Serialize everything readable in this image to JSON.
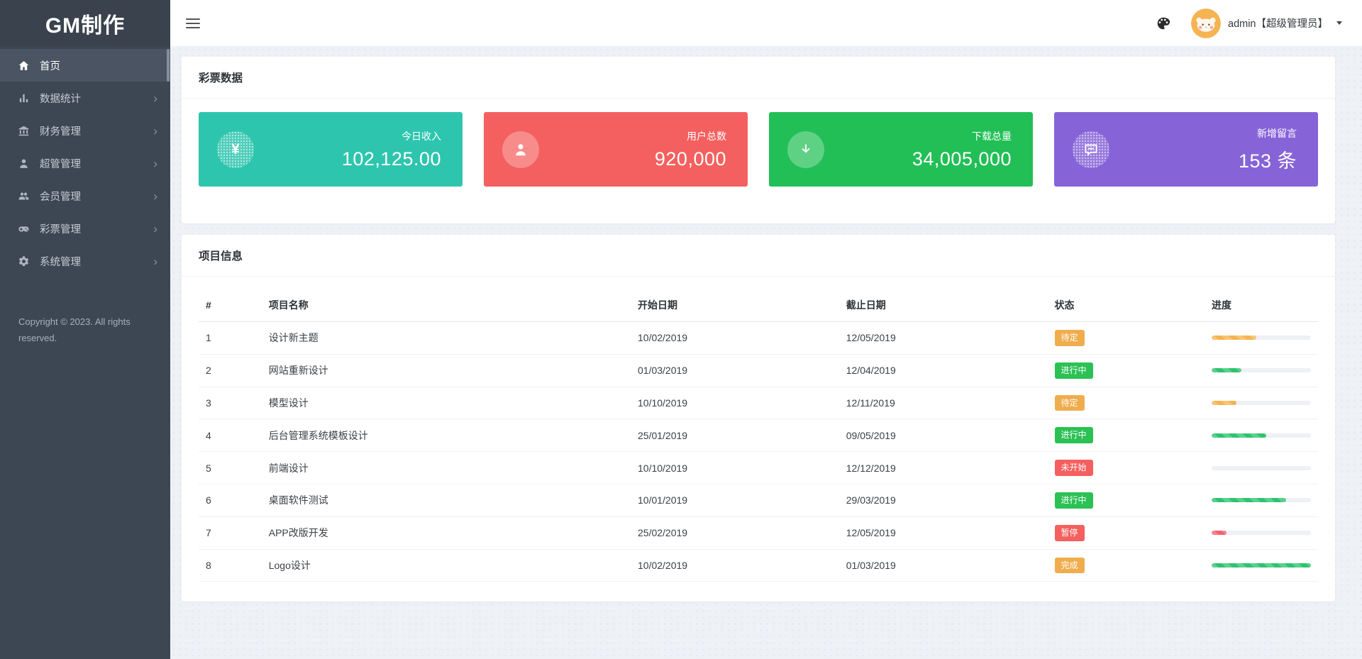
{
  "app": {
    "logo_text": "GM制作"
  },
  "topbar": {
    "hamburger_icon": "menu-icon",
    "theme_icon": "palette-icon",
    "avatar_icon": "cat-avatar",
    "user_label": "admin【超级管理员】",
    "dropdown_icon": "caret-down-icon"
  },
  "sidebar": {
    "items": [
      {
        "label": "首页",
        "icon": "home-icon",
        "active": true,
        "has_children": false
      },
      {
        "label": "数据统计",
        "icon": "chart-icon",
        "active": false,
        "has_children": true
      },
      {
        "label": "财务管理",
        "icon": "bank-icon",
        "active": false,
        "has_children": true
      },
      {
        "label": "超管管理",
        "icon": "user-icon",
        "active": false,
        "has_children": true
      },
      {
        "label": "会员管理",
        "icon": "users-icon",
        "active": false,
        "has_children": true
      },
      {
        "label": "彩票管理",
        "icon": "gamepad-icon",
        "active": false,
        "has_children": true
      },
      {
        "label": "系统管理",
        "icon": "gear-icon",
        "active": false,
        "has_children": true
      }
    ],
    "copyright": "Copyright © 2023. All rights reserved."
  },
  "stats_panel": {
    "title": "彩票数据",
    "cards": [
      {
        "label": "今日收入",
        "value": "102,125.00",
        "color": "#2ec5ae",
        "icon": "yen-icon",
        "icon_style": "dotted"
      },
      {
        "label": "用户总数",
        "value": "920,000",
        "color": "#f4605f",
        "icon": "user-icon",
        "icon_style": "solid"
      },
      {
        "label": "下载总量",
        "value": "34,005,000",
        "color": "#22bf56",
        "icon": "download-icon",
        "icon_style": "solid"
      },
      {
        "label": "新增留言",
        "value": "153 条",
        "color": "#8763d8",
        "icon": "comment-icon",
        "icon_style": "dotted"
      }
    ]
  },
  "projects_panel": {
    "title": "项目信息",
    "columns": [
      "#",
      "项目名称",
      "开始日期",
      "截止日期",
      "状态",
      "进度"
    ],
    "status_colors": {
      "warning": "#f0ad4e",
      "success": "#2bc155",
      "danger": "#f4605f"
    },
    "bar_colors": {
      "orange": "#f5b44f",
      "green": "#2dc36f",
      "red": "#f4616f"
    },
    "rows": [
      {
        "id": "1",
        "name": "设计新主题",
        "start": "10/02/2019",
        "end": "12/05/2019",
        "status": "待定",
        "status_type": "warning",
        "progress": 45,
        "bar": "orange"
      },
      {
        "id": "2",
        "name": "网站重新设计",
        "start": "01/03/2019",
        "end": "12/04/2019",
        "status": "进行中",
        "status_type": "success",
        "progress": 30,
        "bar": "green"
      },
      {
        "id": "3",
        "name": "模型设计",
        "start": "10/10/2019",
        "end": "12/11/2019",
        "status": "待定",
        "status_type": "warning",
        "progress": 25,
        "bar": "orange"
      },
      {
        "id": "4",
        "name": "后台管理系统模板设计",
        "start": "25/01/2019",
        "end": "09/05/2019",
        "status": "进行中",
        "status_type": "success",
        "progress": 55,
        "bar": "green"
      },
      {
        "id": "5",
        "name": "前端设计",
        "start": "10/10/2019",
        "end": "12/12/2019",
        "status": "未开始",
        "status_type": "danger",
        "progress": 0,
        "bar": "green"
      },
      {
        "id": "6",
        "name": "桌面软件测试",
        "start": "10/01/2019",
        "end": "29/03/2019",
        "status": "进行中",
        "status_type": "success",
        "progress": 75,
        "bar": "green"
      },
      {
        "id": "7",
        "name": "APP改版开发",
        "start": "25/02/2019",
        "end": "12/05/2019",
        "status": "暂停",
        "status_type": "danger",
        "progress": 15,
        "bar": "red"
      },
      {
        "id": "8",
        "name": "Logo设计",
        "start": "10/02/2019",
        "end": "01/03/2019",
        "status": "完成",
        "status_type": "warning",
        "progress": 100,
        "bar": "green"
      }
    ]
  }
}
